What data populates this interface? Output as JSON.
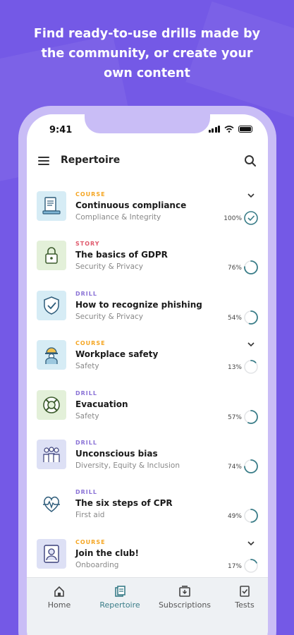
{
  "headline": "Find ready-to-use drills made by the community, or create your own content",
  "status": {
    "time": "9:41"
  },
  "appbar": {
    "title": "Repertoire"
  },
  "colors": {
    "course": "#f5a623",
    "story": "#e05a6d",
    "drill": "#8a72d6",
    "ring": "#3a7d88",
    "background": "#7459e6"
  },
  "items": [
    {
      "type": "COURSE",
      "title": "Continuous compliance",
      "subtitle": "Compliance & Integrity",
      "progress": "100%",
      "progress_value": 100,
      "chevron": true,
      "complete": true,
      "thumb_bg": "#d6ecf5",
      "icon": "document-laptop-icon"
    },
    {
      "type": "STORY",
      "title": "The basics of GDPR",
      "subtitle": "Security & Privacy",
      "progress": "76%",
      "progress_value": 76,
      "chevron": false,
      "complete": false,
      "thumb_bg": "#e3f0d9",
      "icon": "padlock-icon"
    },
    {
      "type": "DRILL",
      "title": "How to recognize phishing",
      "subtitle": "Security & Privacy",
      "progress": "54%",
      "progress_value": 54,
      "chevron": false,
      "complete": false,
      "thumb_bg": "#d6ecf5",
      "icon": "shield-check-icon"
    },
    {
      "type": "COURSE",
      "title": "Workplace safety",
      "subtitle": "Safety",
      "progress": "13%",
      "progress_value": 13,
      "chevron": true,
      "complete": false,
      "thumb_bg": "#d6ecf5",
      "icon": "hardhat-worker-icon"
    },
    {
      "type": "DRILL",
      "title": "Evacuation",
      "subtitle": "Safety",
      "progress": "57%",
      "progress_value": 57,
      "chevron": false,
      "complete": false,
      "thumb_bg": "#e3f0d9",
      "icon": "lifebuoy-icon"
    },
    {
      "type": "DRILL",
      "title": "Unconscious bias",
      "subtitle": "Diversity, Equity & Inclusion",
      "progress": "74%",
      "progress_value": 74,
      "chevron": false,
      "complete": false,
      "thumb_bg": "#dde0f5",
      "icon": "group-people-icon"
    },
    {
      "type": "DRILL",
      "title": "The six steps of CPR",
      "subtitle": "First aid",
      "progress": "49%",
      "progress_value": 49,
      "chevron": false,
      "complete": false,
      "thumb_bg": "#ffffff",
      "icon": "heart-pulse-icon"
    },
    {
      "type": "COURSE",
      "title": "Join the club!",
      "subtitle": "Onboarding",
      "progress": "17%",
      "progress_value": 17,
      "chevron": true,
      "complete": false,
      "thumb_bg": "#dde0f5",
      "icon": "person-badge-icon"
    }
  ],
  "tabs": [
    {
      "label": "Home",
      "icon": "home-icon",
      "active": false
    },
    {
      "label": "Repertoire",
      "icon": "repertoire-icon",
      "active": true
    },
    {
      "label": "Subscriptions",
      "icon": "subscriptions-icon",
      "active": false
    },
    {
      "label": "Tests",
      "icon": "tests-icon",
      "active": false
    }
  ]
}
